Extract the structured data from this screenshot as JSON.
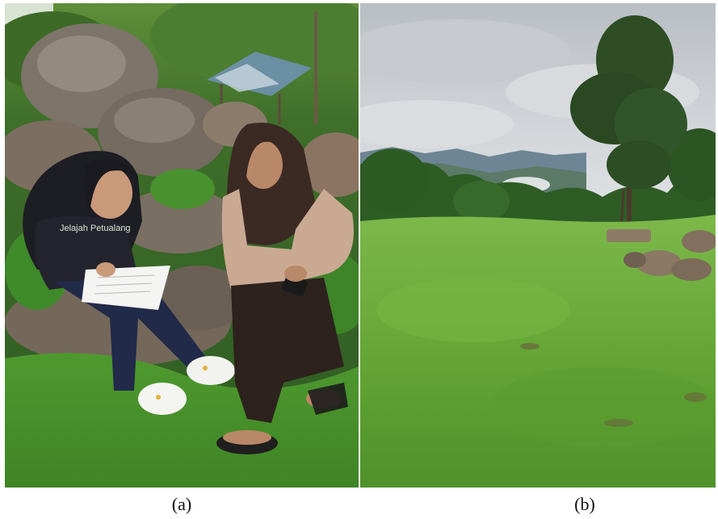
{
  "panels": [
    {
      "caption": "(a)",
      "shirt_text": "Jelajah Petualang"
    },
    {
      "caption": "(b)"
    }
  ],
  "colors": {
    "grass_a": "#4f9a2f",
    "grass_b": "#6fae3c",
    "sky": "#c9cdd2",
    "hijab": "#3b2a24",
    "rock": "#7a6f63"
  }
}
